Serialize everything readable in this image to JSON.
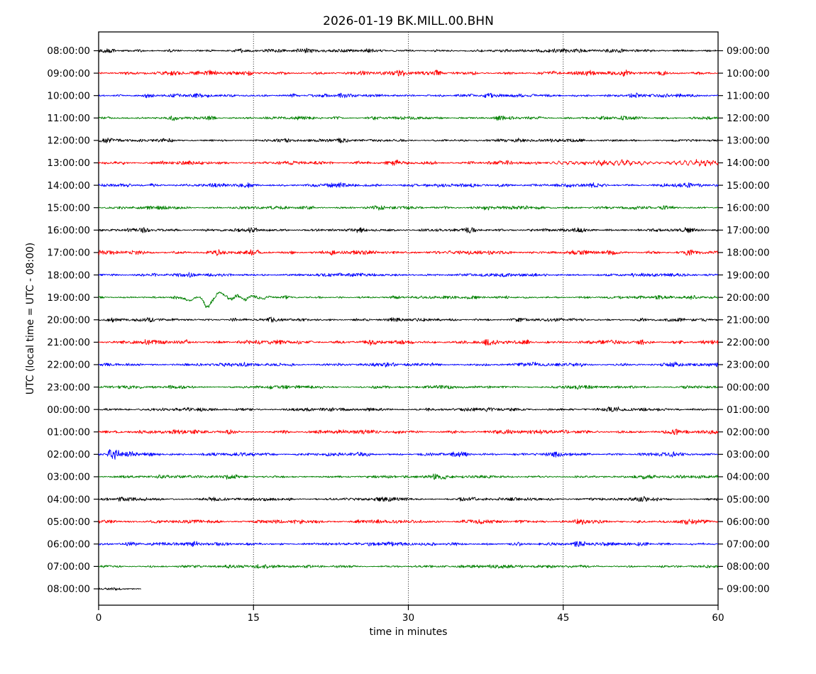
{
  "chart_data": {
    "type": "line",
    "subtype": "seismic-helicorder-dayplot",
    "title": "2026-01-19 BK.MILL.00.BHN",
    "xlabel": "time in minutes",
    "ylabel": "UTC (local time = UTC - 08:00)",
    "xlim": [
      0,
      60
    ],
    "xticks": [
      0,
      15,
      30,
      45,
      60
    ],
    "gridline_minutes": [
      15,
      30,
      45
    ],
    "minutes_per_line": 60,
    "grid": "dotted-vertical",
    "legend": "none",
    "color_cycle": [
      "#000000",
      "#ff0000",
      "#0000ff",
      "#008000"
    ],
    "left_axis_meaning": "UTC start time of each line",
    "right_axis_meaning": "UTC end time of each line",
    "traces": [
      {
        "utc": "08:00:00",
        "local": "09:00:00",
        "color": "#000000",
        "noise_amp": 1.5,
        "start_min": 0,
        "end_min": 60,
        "events": []
      },
      {
        "utc": "09:00:00",
        "local": "10:00:00",
        "color": "#ff0000",
        "noise_amp": 1.8,
        "start_min": 0,
        "end_min": 60,
        "events": []
      },
      {
        "utc": "10:00:00",
        "local": "11:00:00",
        "color": "#0000ff",
        "noise_amp": 1.5,
        "start_min": 0,
        "end_min": 60,
        "events": []
      },
      {
        "utc": "11:00:00",
        "local": "12:00:00",
        "color": "#008000",
        "noise_amp": 1.4,
        "start_min": 0,
        "end_min": 60,
        "events": []
      },
      {
        "utc": "12:00:00",
        "local": "13:00:00",
        "color": "#000000",
        "noise_amp": 1.4,
        "start_min": 0,
        "end_min": 60,
        "events": []
      },
      {
        "utc": "13:00:00",
        "local": "14:00:00",
        "color": "#ff0000",
        "noise_amp": 1.6,
        "start_min": 0,
        "end_min": 60,
        "events": [
          {
            "type": "tremor",
            "start": 44.5,
            "end": 60,
            "amp": 2.4,
            "freq": 1.8
          }
        ]
      },
      {
        "utc": "14:00:00",
        "local": "15:00:00",
        "color": "#0000ff",
        "noise_amp": 1.6,
        "start_min": 0,
        "end_min": 60,
        "events": []
      },
      {
        "utc": "15:00:00",
        "local": "16:00:00",
        "color": "#008000",
        "noise_amp": 1.4,
        "start_min": 0,
        "end_min": 60,
        "events": [
          {
            "type": "blip",
            "center": 36.7,
            "width": 0.7,
            "amp": 1.7
          },
          {
            "type": "blip",
            "center": 37.6,
            "width": 1.4,
            "amp": 2.7
          }
        ]
      },
      {
        "utc": "16:00:00",
        "local": "17:00:00",
        "color": "#000000",
        "noise_amp": 1.5,
        "start_min": 0,
        "end_min": 60,
        "events": []
      },
      {
        "utc": "17:00:00",
        "local": "18:00:00",
        "color": "#ff0000",
        "noise_amp": 1.7,
        "start_min": 0,
        "end_min": 60,
        "events": []
      },
      {
        "utc": "18:00:00",
        "local": "19:00:00",
        "color": "#0000ff",
        "noise_amp": 1.5,
        "start_min": 0,
        "end_min": 60,
        "events": []
      },
      {
        "utc": "19:00:00",
        "local": "20:00:00",
        "color": "#008000",
        "noise_amp": 1.3,
        "start_min": 0,
        "end_min": 60,
        "events": [
          {
            "type": "longperiod",
            "points": [
              [
                6.8,
                0
              ],
              [
                7.3,
                0
              ],
              [
                8.1,
                -1.2
              ],
              [
                8.9,
                -4.5
              ],
              [
                9.5,
                0.4
              ],
              [
                10.0,
                -1.6
              ],
              [
                10.5,
                -14
              ],
              [
                11.1,
                -2.5
              ],
              [
                11.65,
                6.5
              ],
              [
                12.2,
                3
              ],
              [
                12.8,
                -2.4
              ],
              [
                13.4,
                2.6
              ],
              [
                14.2,
                -3.4
              ],
              [
                14.8,
                2
              ],
              [
                15.4,
                -0.4
              ],
              [
                15.9,
                -1.8
              ],
              [
                16.5,
                0.5
              ],
              [
                17.3,
                0
              ]
            ]
          }
        ]
      },
      {
        "utc": "20:00:00",
        "local": "21:00:00",
        "color": "#000000",
        "noise_amp": 1.4,
        "start_min": 0,
        "end_min": 60,
        "events": []
      },
      {
        "utc": "21:00:00",
        "local": "22:00:00",
        "color": "#ff0000",
        "noise_amp": 1.8,
        "start_min": 0,
        "end_min": 60,
        "events": []
      },
      {
        "utc": "22:00:00",
        "local": "23:00:00",
        "color": "#0000ff",
        "noise_amp": 1.5,
        "start_min": 0,
        "end_min": 60,
        "events": []
      },
      {
        "utc": "23:00:00",
        "local": "00:00:00",
        "color": "#008000",
        "noise_amp": 1.4,
        "start_min": 0,
        "end_min": 60,
        "events": []
      },
      {
        "utc": "00:00:00",
        "local": "01:00:00",
        "color": "#000000",
        "noise_amp": 1.5,
        "start_min": 0,
        "end_min": 60,
        "events": []
      },
      {
        "utc": "01:00:00",
        "local": "02:00:00",
        "color": "#ff0000",
        "noise_amp": 1.7,
        "start_min": 0,
        "end_min": 60,
        "events": []
      },
      {
        "utc": "02:00:00",
        "local": "03:00:00",
        "color": "#0000ff",
        "noise_amp": 1.5,
        "start_min": 0,
        "end_min": 60,
        "events": [
          {
            "type": "burst",
            "start": 0.7,
            "peak": 1.15,
            "amp": 7.5,
            "decay": 1.8
          }
        ]
      },
      {
        "utc": "03:00:00",
        "local": "04:00:00",
        "color": "#008000",
        "noise_amp": 1.4,
        "start_min": 0,
        "end_min": 60,
        "events": []
      },
      {
        "utc": "04:00:00",
        "local": "05:00:00",
        "color": "#000000",
        "noise_amp": 1.5,
        "start_min": 0,
        "end_min": 60,
        "events": []
      },
      {
        "utc": "05:00:00",
        "local": "06:00:00",
        "color": "#ff0000",
        "noise_amp": 1.7,
        "start_min": 0,
        "end_min": 60,
        "events": []
      },
      {
        "utc": "06:00:00",
        "local": "07:00:00",
        "color": "#0000ff",
        "noise_amp": 1.6,
        "start_min": 0,
        "end_min": 60,
        "events": []
      },
      {
        "utc": "07:00:00",
        "local": "08:00:00",
        "color": "#008000",
        "noise_amp": 1.4,
        "start_min": 0,
        "end_min": 60,
        "events": []
      },
      {
        "utc": "08:00:00",
        "local": "09:00:00",
        "color": "#000000",
        "noise_amp": 1.6,
        "start_min": 0,
        "end_min": 4.1,
        "events": []
      }
    ]
  }
}
